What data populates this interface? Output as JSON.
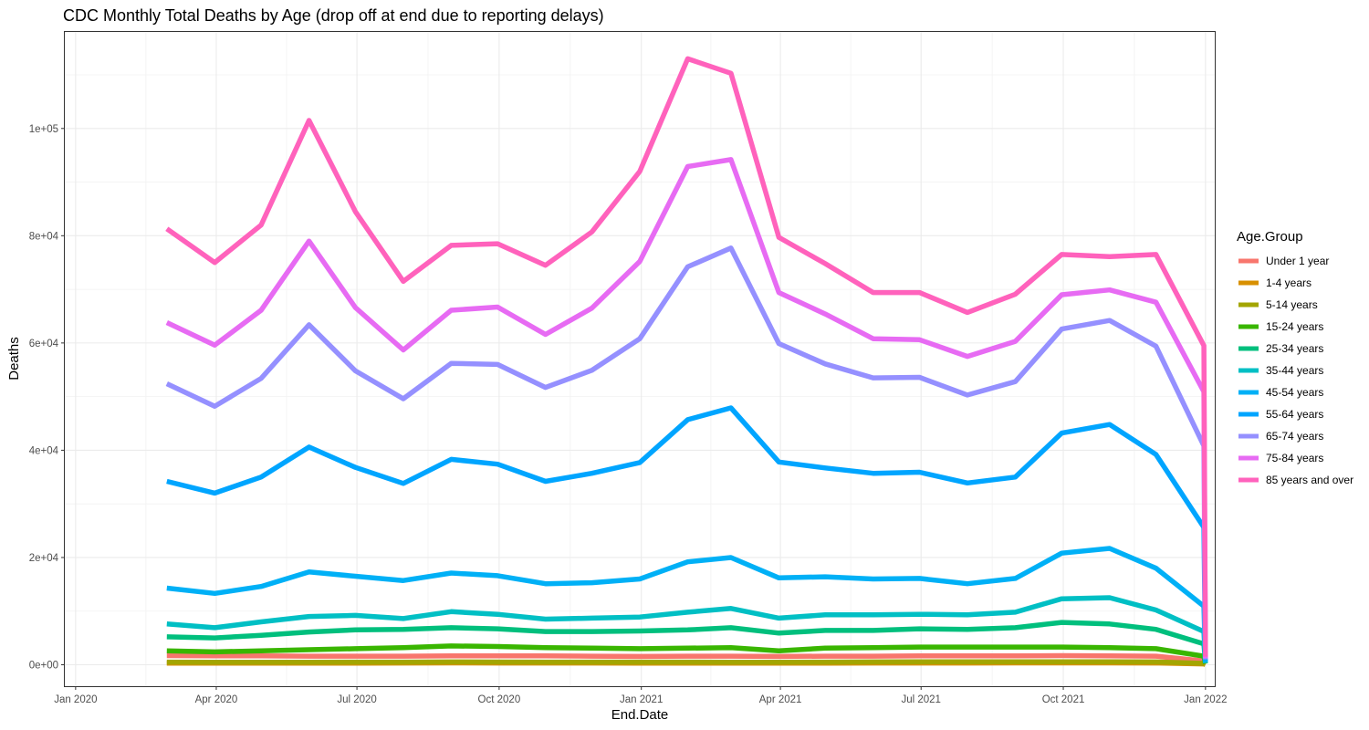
{
  "chart_data": {
    "type": "line",
    "title": "CDC Monthly Total Deaths by Age (drop off at end due to reporting delays)",
    "xlabel": "End.Date",
    "ylabel": "Deaths",
    "legend_title": "Age.Group",
    "legend_position": "right",
    "grid": true,
    "xlim": [
      "2019-12-25",
      "2022-01-07"
    ],
    "ylim": [
      -4000,
      118000
    ],
    "x_ticks": [
      {
        "date": "2020-01-01",
        "label": "Jan 2020"
      },
      {
        "date": "2020-04-01",
        "label": "Apr 2020"
      },
      {
        "date": "2020-07-01",
        "label": "Jul 2020"
      },
      {
        "date": "2020-10-01",
        "label": "Oct 2020"
      },
      {
        "date": "2021-01-01",
        "label": "Jan 2021"
      },
      {
        "date": "2021-04-01",
        "label": "Apr 2021"
      },
      {
        "date": "2021-07-01",
        "label": "Jul 2021"
      },
      {
        "date": "2021-10-01",
        "label": "Oct 2021"
      },
      {
        "date": "2022-01-01",
        "label": "Jan 2022"
      }
    ],
    "y_ticks": [
      {
        "value": 0,
        "label": "0e+00"
      },
      {
        "value": 20000,
        "label": "2e+04"
      },
      {
        "value": 40000,
        "label": "4e+04"
      },
      {
        "value": 60000,
        "label": "6e+04"
      },
      {
        "value": 80000,
        "label": "8e+04"
      },
      {
        "value": 100000,
        "label": "1e+05"
      }
    ],
    "x": [
      "2020-02-29",
      "2020-03-31",
      "2020-04-30",
      "2020-05-31",
      "2020-06-30",
      "2020-07-31",
      "2020-08-31",
      "2020-09-30",
      "2020-10-31",
      "2020-11-30",
      "2020-12-31",
      "2021-01-31",
      "2021-02-28",
      "2021-03-31",
      "2021-04-30",
      "2021-05-31",
      "2021-06-30",
      "2021-07-31",
      "2021-08-31",
      "2021-09-30",
      "2021-10-31",
      "2021-11-30",
      "2021-12-31",
      "2022-01-01"
    ],
    "series": [
      {
        "name": "Under 1 year",
        "color": "#F8766D",
        "values": [
          1700,
          1650,
          1650,
          1600,
          1600,
          1600,
          1650,
          1650,
          1650,
          1600,
          1550,
          1600,
          1600,
          1550,
          1600,
          1600,
          1650,
          1650,
          1650,
          1700,
          1650,
          1600,
          700,
          200
        ]
      },
      {
        "name": "1-4 years",
        "color": "#D89000",
        "values": [
          300,
          280,
          280,
          280,
          300,
          320,
          340,
          330,
          320,
          320,
          310,
          310,
          300,
          300,
          310,
          320,
          330,
          330,
          340,
          340,
          340,
          320,
          150,
          30
        ]
      },
      {
        "name": "5-14 years",
        "color": "#A3A500",
        "values": [
          500,
          450,
          450,
          450,
          500,
          500,
          520,
          510,
          500,
          500,
          500,
          500,
          480,
          480,
          500,
          520,
          540,
          540,
          550,
          560,
          560,
          530,
          250,
          50
        ]
      },
      {
        "name": "15-24 years",
        "color": "#39B600",
        "values": [
          2600,
          2400,
          2600,
          2800,
          3000,
          3200,
          3500,
          3400,
          3200,
          3100,
          3000,
          3100,
          3200,
          2600,
          3100,
          3200,
          3300,
          3300,
          3300,
          3300,
          3200,
          3000,
          1600,
          200
        ]
      },
      {
        "name": "25-34 years",
        "color": "#00BF7D",
        "values": [
          5200,
          5000,
          5500,
          6100,
          6500,
          6600,
          6900,
          6700,
          6200,
          6200,
          6300,
          6500,
          6900,
          5900,
          6400,
          6400,
          6700,
          6600,
          6900,
          7900,
          7600,
          6600,
          3900,
          300
        ]
      },
      {
        "name": "35-44 years",
        "color": "#00BFC4",
        "values": [
          7600,
          6900,
          8000,
          9000,
          9200,
          8600,
          9900,
          9400,
          8500,
          8700,
          8900,
          9800,
          10500,
          8700,
          9300,
          9300,
          9400,
          9300,
          9800,
          12300,
          12500,
          10200,
          6200,
          300
        ]
      },
      {
        "name": "45-54 years",
        "color": "#00B0F6",
        "values": [
          14300,
          13300,
          14600,
          17300,
          16500,
          15700,
          17100,
          16600,
          15100,
          15300,
          16000,
          19200,
          20000,
          16200,
          16400,
          16000,
          16100,
          15100,
          16100,
          20800,
          21700,
          18000,
          10900,
          500
        ]
      },
      {
        "name": "55-64 years",
        "color": "#00A5FF",
        "values": [
          34200,
          32000,
          35000,
          40600,
          36800,
          33800,
          38300,
          37400,
          34200,
          35700,
          37700,
          45700,
          47900,
          37800,
          36700,
          35700,
          35900,
          33900,
          35000,
          43200,
          44800,
          39200,
          25600,
          800
        ]
      },
      {
        "name": "65-74 years",
        "color": "#9590FF",
        "values": [
          52400,
          48200,
          53400,
          63400,
          54800,
          49600,
          56200,
          56000,
          51700,
          54900,
          60800,
          74200,
          77700,
          59900,
          56100,
          53500,
          53600,
          50300,
          52800,
          62600,
          64200,
          59400,
          40800,
          1000
        ]
      },
      {
        "name": "75-84 years",
        "color": "#E76BF3",
        "values": [
          63800,
          59600,
          66100,
          79000,
          66600,
          58700,
          66100,
          66700,
          61600,
          66500,
          75200,
          92900,
          94200,
          69400,
          65400,
          60800,
          60600,
          57500,
          60300,
          69000,
          69900,
          67600,
          50900,
          1200
        ]
      },
      {
        "name": "85 years and over",
        "color": "#FF62BC",
        "values": [
          81300,
          75000,
          82000,
          101500,
          84500,
          71500,
          78200,
          78500,
          74500,
          80700,
          92000,
          113000,
          110300,
          79700,
          74800,
          69400,
          69400,
          65700,
          69100,
          76500,
          76100,
          76500,
          59500,
          1500
        ]
      }
    ]
  }
}
